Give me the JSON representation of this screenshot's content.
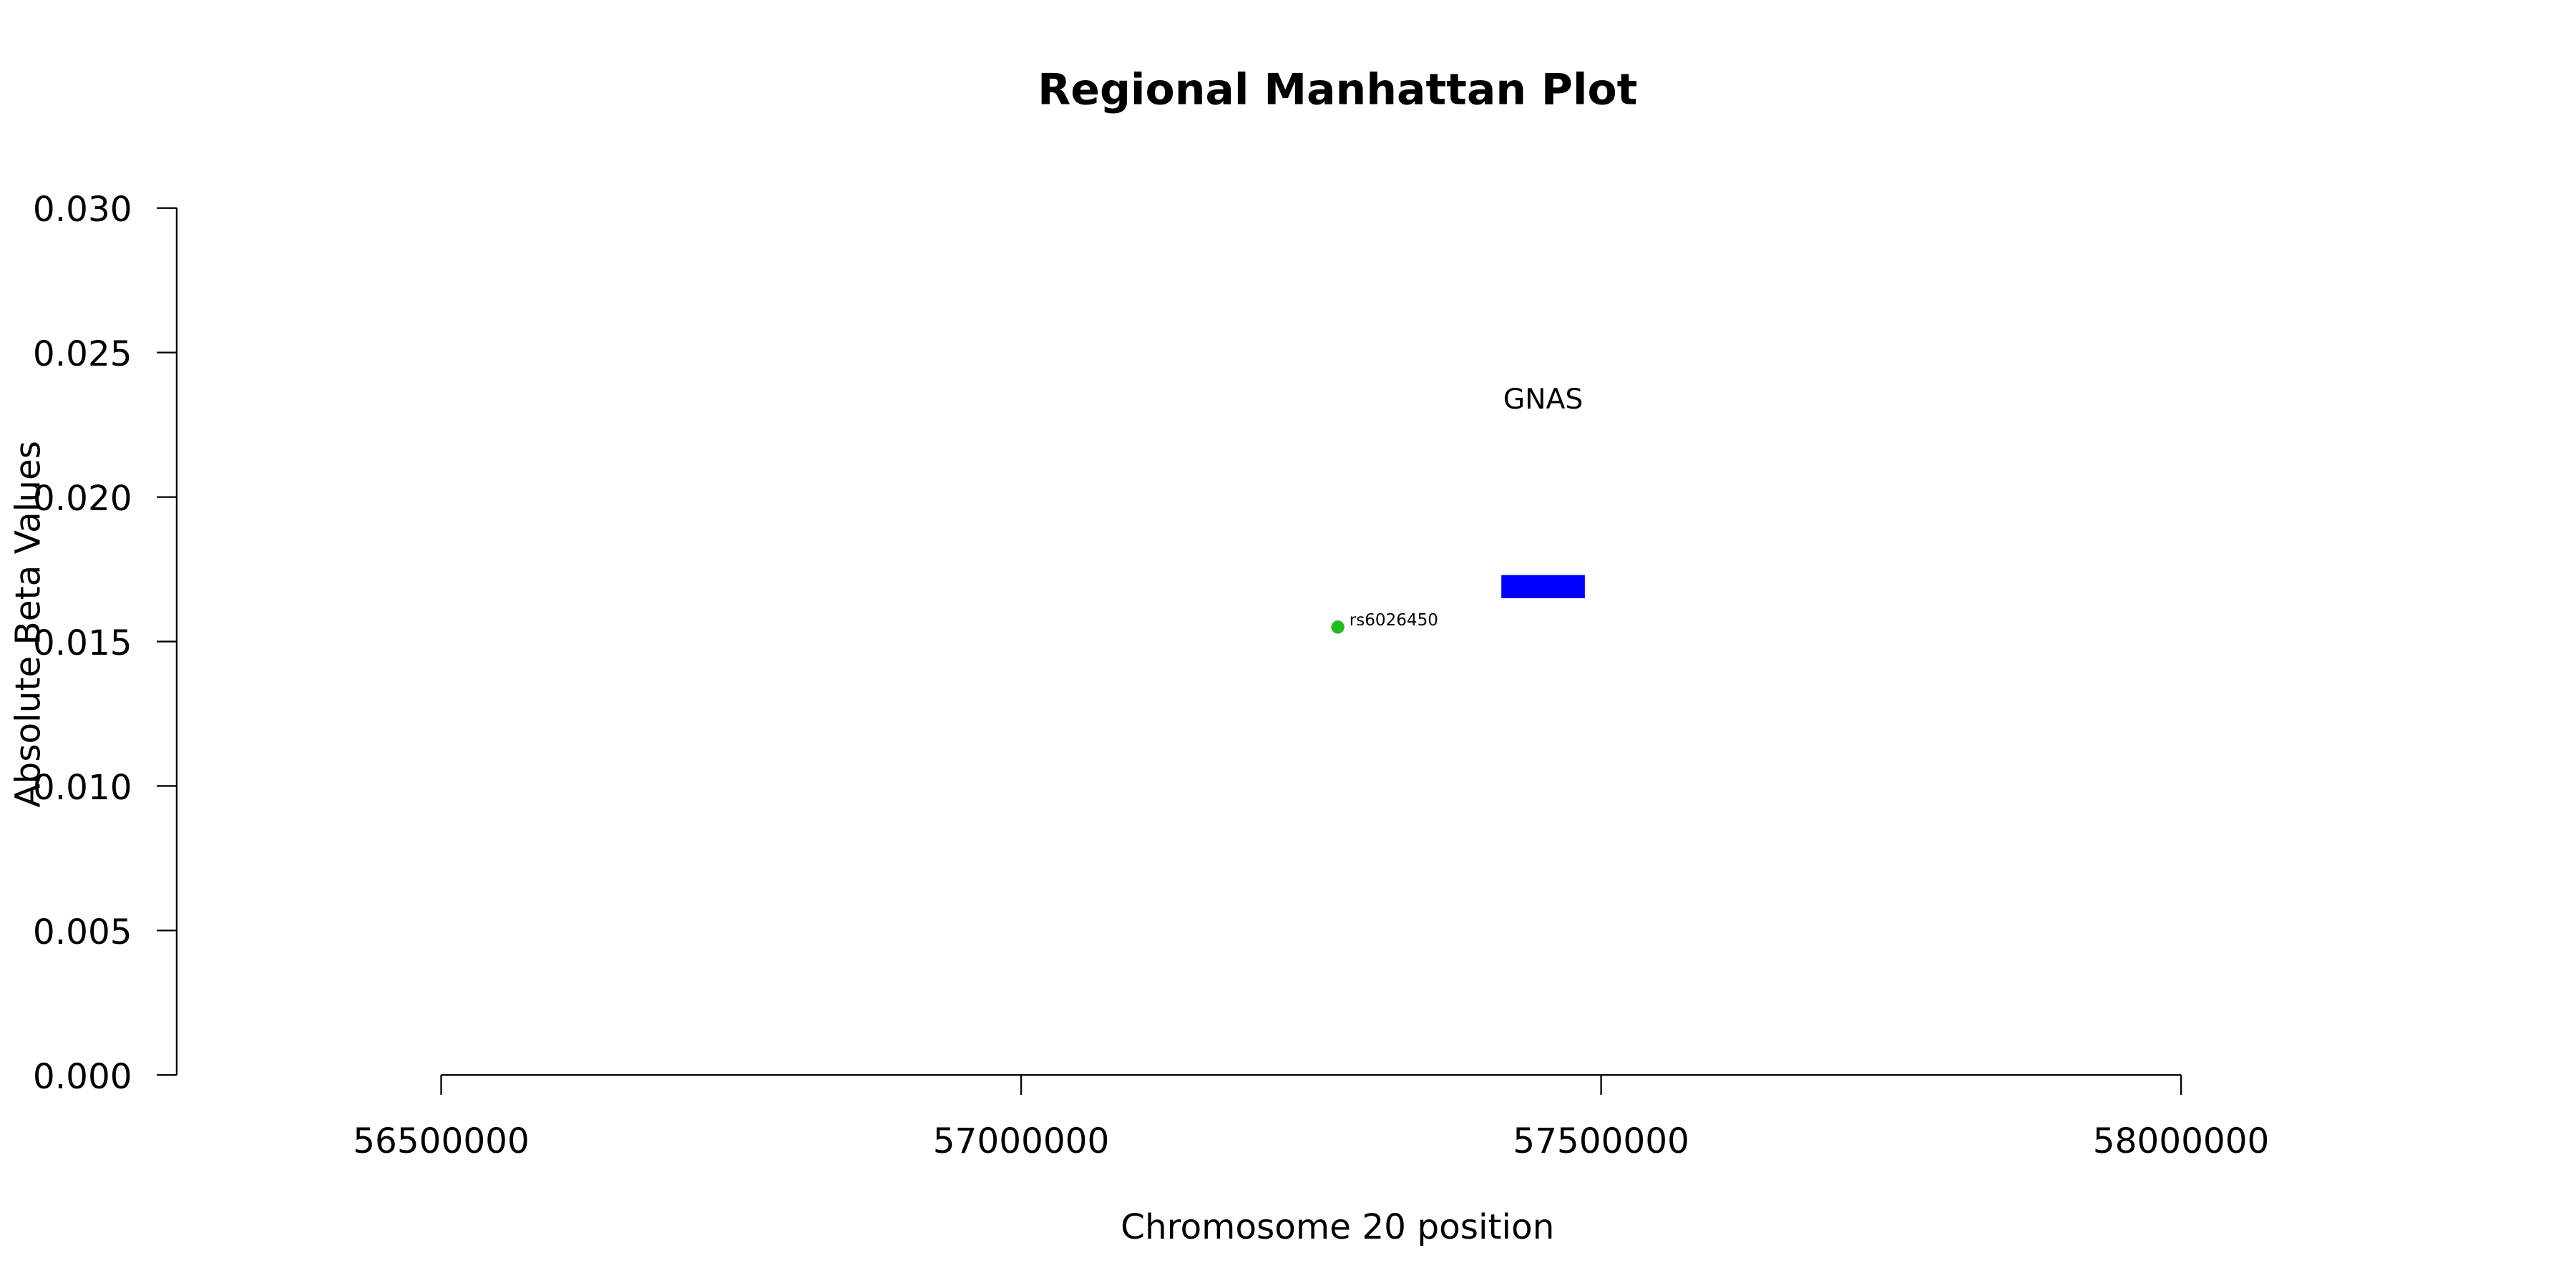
{
  "chart_data": {
    "type": "scatter",
    "title": "Regional Manhattan Plot",
    "x_label": "Chromosome 20 position",
    "y_label": "Absolute Beta Values",
    "series": [
      {
        "name": "rs6026450",
        "color": "#22bb22",
        "x": [
          57273000
        ],
        "values": [
          0.0155
        ]
      }
    ],
    "genes": [
      {
        "name": "GNAS",
        "color": "#0000ff",
        "start": 57414000,
        "end": 57486000,
        "ymin": 0.0165,
        "ymax": 0.0173,
        "label_y": 0.0234
      }
    ],
    "xlim": [
      56272000,
      58228000
    ],
    "ylim": [
      0,
      0.03
    ],
    "xticks": [
      56500000,
      57000000,
      57500000,
      58000000
    ],
    "yticks": [
      {
        "value": 0,
        "label": "0.000"
      },
      {
        "value": 0.005,
        "label": "0.005"
      },
      {
        "value": 0.01,
        "label": "0.010"
      },
      {
        "value": 0.015,
        "label": "0.015"
      },
      {
        "value": 0.02,
        "label": "0.020"
      },
      {
        "value": 0.025,
        "label": "0.025"
      },
      {
        "value": 0.03,
        "label": "0.030"
      }
    ]
  }
}
